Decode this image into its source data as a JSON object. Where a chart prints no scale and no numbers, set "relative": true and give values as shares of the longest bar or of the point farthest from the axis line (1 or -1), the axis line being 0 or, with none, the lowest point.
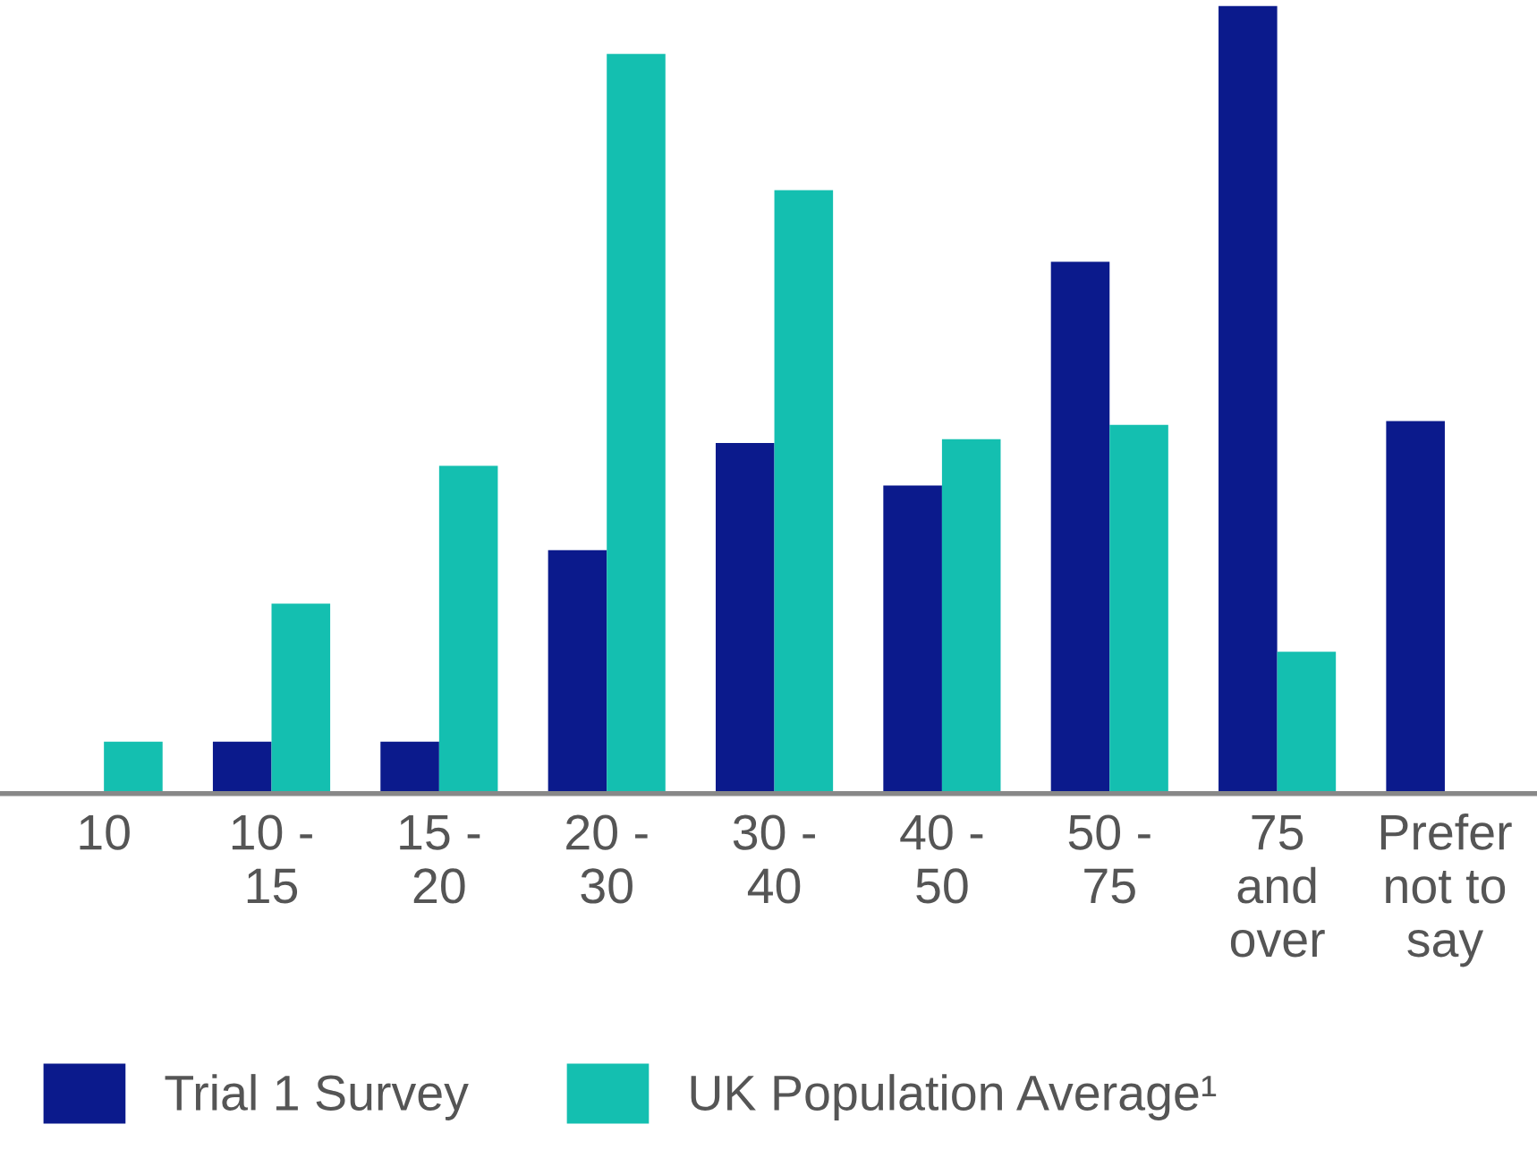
{
  "chart_data": {
    "type": "bar",
    "relative": true,
    "categories": [
      "10",
      "10 -\n15",
      "15 -\n20",
      "20 -\n30",
      "30 -\n40",
      "40 -\n50",
      "50 -\n75",
      "75\nand\nover",
      "Prefer\nnot to\nsay"
    ],
    "series": [
      {
        "name": "Trial 1 Survey",
        "color": "#0b1a8c",
        "values": [
          null,
          0.066,
          0.066,
          0.309,
          0.445,
          0.391,
          0.675,
          1,
          0.473
        ]
      },
      {
        "name": "UK Population Average¹",
        "color": "#14bfb0",
        "values": [
          0.066,
          0.241,
          0.416,
          0.939,
          0.766,
          0.45,
          0.468,
          0.18,
          null
        ]
      }
    ],
    "legend": "bottom left",
    "grid": false
  }
}
